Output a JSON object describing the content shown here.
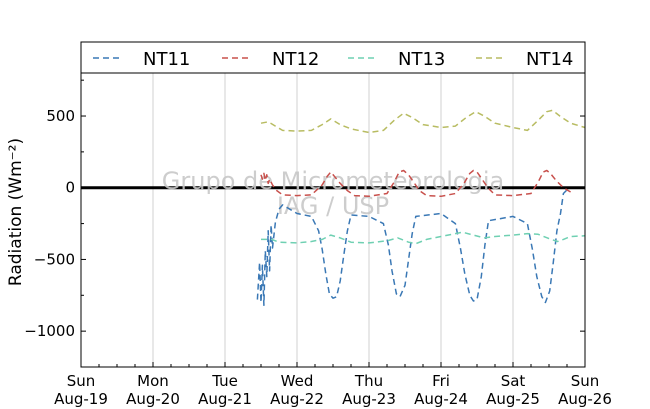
{
  "chart_data": {
    "type": "line",
    "ylabel": "Radiation (Wm⁻²)",
    "ylim": [
      -1250,
      800
    ],
    "xlim": [
      "2012-08-19",
      "2012-08-26"
    ],
    "grid": {
      "x": true,
      "y": false
    },
    "zero_line": true,
    "legend_position": "top",
    "yticks": [
      -1000,
      -500,
      0,
      500
    ],
    "ytick_labels": [
      "−1000",
      "−500",
      "0",
      "500"
    ],
    "xtick_labels": [
      [
        "Sun",
        "Aug-19"
      ],
      [
        "Mon",
        "Aug-20"
      ],
      [
        "Tue",
        "Aug-21"
      ],
      [
        "Wed",
        "Aug-22"
      ],
      [
        "Thu",
        "Aug-23"
      ],
      [
        "Fri",
        "Aug-24"
      ],
      [
        "Sat",
        "Aug-25"
      ],
      [
        "Sun",
        "Aug-26"
      ]
    ],
    "watermark": [
      "Grupo de Micrometeorologia",
      "IAG / USP"
    ],
    "series": [
      {
        "name": "NT11",
        "color": "#3a78b5",
        "points": [
          [
            2.45,
            -780
          ],
          [
            2.48,
            -520
          ],
          [
            2.5,
            -800
          ],
          [
            2.52,
            -540
          ],
          [
            2.54,
            -820
          ],
          [
            2.56,
            -440
          ],
          [
            2.58,
            -620
          ],
          [
            2.6,
            -300
          ],
          [
            2.62,
            -580
          ],
          [
            2.64,
            -260
          ],
          [
            2.66,
            -420
          ],
          [
            2.7,
            -240
          ],
          [
            2.75,
            -150
          ],
          [
            2.8,
            -120
          ],
          [
            3.0,
            -180
          ],
          [
            3.2,
            -200
          ],
          [
            3.3,
            -300
          ],
          [
            3.35,
            -430
          ],
          [
            3.4,
            -600
          ],
          [
            3.45,
            -740
          ],
          [
            3.5,
            -770
          ],
          [
            3.55,
            -760
          ],
          [
            3.6,
            -650
          ],
          [
            3.65,
            -470
          ],
          [
            3.7,
            -300
          ],
          [
            3.75,
            -190
          ],
          [
            4.0,
            -200
          ],
          [
            4.2,
            -250
          ],
          [
            4.27,
            -400
          ],
          [
            4.32,
            -580
          ],
          [
            4.38,
            -740
          ],
          [
            4.43,
            -760
          ],
          [
            4.5,
            -680
          ],
          [
            4.55,
            -500
          ],
          [
            4.6,
            -320
          ],
          [
            4.65,
            -200
          ],
          [
            5.0,
            -180
          ],
          [
            5.2,
            -250
          ],
          [
            5.27,
            -420
          ],
          [
            5.33,
            -600
          ],
          [
            5.4,
            -750
          ],
          [
            5.45,
            -790
          ],
          [
            5.5,
            -780
          ],
          [
            5.56,
            -620
          ],
          [
            5.61,
            -400
          ],
          [
            5.66,
            -230
          ],
          [
            6.0,
            -200
          ],
          [
            6.2,
            -250
          ],
          [
            6.27,
            -430
          ],
          [
            6.33,
            -620
          ],
          [
            6.4,
            -760
          ],
          [
            6.45,
            -800
          ],
          [
            6.51,
            -720
          ],
          [
            6.56,
            -520
          ],
          [
            6.61,
            -300
          ],
          [
            6.66,
            -180
          ],
          [
            6.7,
            -40
          ],
          [
            6.78,
            0
          ]
        ]
      },
      {
        "name": "NT12",
        "color": "#c8504c",
        "points": [
          [
            2.5,
            90
          ],
          [
            2.52,
            60
          ],
          [
            2.54,
            100
          ],
          [
            2.56,
            50
          ],
          [
            2.58,
            90
          ],
          [
            2.6,
            30
          ],
          [
            2.62,
            60
          ],
          [
            2.66,
            20
          ],
          [
            2.72,
            -20
          ],
          [
            2.8,
            -50
          ],
          [
            3.0,
            -55
          ],
          [
            3.2,
            -50
          ],
          [
            3.35,
            20
          ],
          [
            3.42,
            80
          ],
          [
            3.47,
            110
          ],
          [
            3.52,
            80
          ],
          [
            3.6,
            30
          ],
          [
            3.7,
            -20
          ],
          [
            3.8,
            -55
          ],
          [
            4.0,
            -60
          ],
          [
            4.25,
            -40
          ],
          [
            4.35,
            40
          ],
          [
            4.42,
            110
          ],
          [
            4.48,
            120
          ],
          [
            4.55,
            90
          ],
          [
            4.62,
            40
          ],
          [
            4.7,
            -20
          ],
          [
            4.8,
            -55
          ],
          [
            5.0,
            -60
          ],
          [
            5.2,
            -40
          ],
          [
            5.32,
            30
          ],
          [
            5.4,
            100
          ],
          [
            5.45,
            120
          ],
          [
            5.5,
            110
          ],
          [
            5.57,
            60
          ],
          [
            5.65,
            0
          ],
          [
            5.75,
            -50
          ],
          [
            6.0,
            -55
          ],
          [
            6.25,
            -40
          ],
          [
            6.35,
            40
          ],
          [
            6.42,
            110
          ],
          [
            6.47,
            120
          ],
          [
            6.52,
            100
          ],
          [
            6.6,
            50
          ],
          [
            6.7,
            0
          ],
          [
            6.8,
            -30
          ]
        ]
      },
      {
        "name": "NT13",
        "color": "#6fd0b2",
        "points": [
          [
            2.5,
            -360
          ],
          [
            2.65,
            -360
          ],
          [
            2.75,
            -380
          ],
          [
            3.0,
            -385
          ],
          [
            3.2,
            -375
          ],
          [
            3.35,
            -360
          ],
          [
            3.47,
            -330
          ],
          [
            3.6,
            -350
          ],
          [
            3.75,
            -380
          ],
          [
            4.0,
            -385
          ],
          [
            4.25,
            -370
          ],
          [
            4.4,
            -350
          ],
          [
            4.55,
            -380
          ],
          [
            4.65,
            -390
          ],
          [
            4.8,
            -360
          ],
          [
            5.0,
            -340
          ],
          [
            5.2,
            -320
          ],
          [
            5.3,
            -310
          ],
          [
            5.45,
            -330
          ],
          [
            5.6,
            -350
          ],
          [
            5.75,
            -340
          ],
          [
            6.0,
            -330
          ],
          [
            6.2,
            -320
          ],
          [
            6.35,
            -325
          ],
          [
            6.5,
            -355
          ],
          [
            6.62,
            -375
          ],
          [
            6.7,
            -360
          ],
          [
            6.8,
            -340
          ],
          [
            7.0,
            -335
          ]
        ]
      },
      {
        "name": "NT14",
        "color": "#b8bc62",
        "points": [
          [
            2.5,
            450
          ],
          [
            2.6,
            460
          ],
          [
            2.7,
            430
          ],
          [
            2.8,
            400
          ],
          [
            3.0,
            395
          ],
          [
            3.2,
            400
          ],
          [
            3.35,
            440
          ],
          [
            3.47,
            480
          ],
          [
            3.6,
            440
          ],
          [
            3.75,
            410
          ],
          [
            4.0,
            385
          ],
          [
            4.2,
            400
          ],
          [
            4.35,
            470
          ],
          [
            4.48,
            520
          ],
          [
            4.6,
            490
          ],
          [
            4.75,
            440
          ],
          [
            5.0,
            420
          ],
          [
            5.2,
            430
          ],
          [
            5.35,
            490
          ],
          [
            5.48,
            530
          ],
          [
            5.6,
            500
          ],
          [
            5.75,
            450
          ],
          [
            6.0,
            420
          ],
          [
            6.2,
            400
          ],
          [
            6.35,
            470
          ],
          [
            6.47,
            530
          ],
          [
            6.55,
            540
          ],
          [
            6.65,
            500
          ],
          [
            6.8,
            450
          ],
          [
            7.0,
            420
          ]
        ]
      }
    ]
  }
}
